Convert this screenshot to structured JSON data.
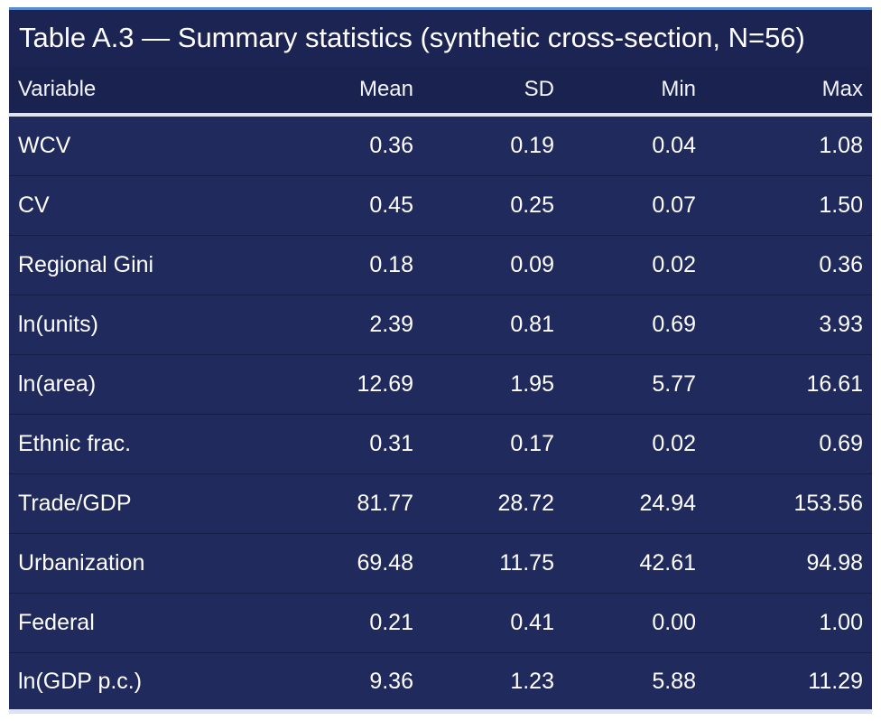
{
  "table": {
    "caption": "Table A.3 — Summary statistics (synthetic cross-section, N=56)",
    "columns": [
      "Variable",
      "Mean",
      "SD",
      "Min",
      "Max"
    ],
    "rows": [
      [
        "WCV",
        "0.36",
        "0.19",
        "0.04",
        "1.08"
      ],
      [
        "CV",
        "0.45",
        "0.25",
        "0.07",
        "1.50"
      ],
      [
        "Regional Gini",
        "0.18",
        "0.09",
        "0.02",
        "0.36"
      ],
      [
        "ln(units)",
        "2.39",
        "0.81",
        "0.69",
        "3.93"
      ],
      [
        "ln(area)",
        "12.69",
        "1.95",
        "5.77",
        "16.61"
      ],
      [
        "Ethnic frac.",
        "0.31",
        "0.17",
        "0.02",
        "0.69"
      ],
      [
        "Trade/GDP",
        "81.77",
        "28.72",
        "24.94",
        "153.56"
      ],
      [
        "Urbanization",
        "69.48",
        "11.75",
        "42.61",
        "94.98"
      ],
      [
        "Federal",
        "0.21",
        "0.41",
        "0.00",
        "1.00"
      ],
      [
        "ln(GDP p.c.)",
        "9.36",
        "1.23",
        "5.88",
        "11.29"
      ]
    ]
  },
  "colors": {
    "background": "#202a5c",
    "caption_bg": "#1c2454",
    "header_bg": "#1a2250",
    "accent_rule": "#5b8bd0",
    "rule": "#dfe3ee",
    "text": "#ffffff"
  }
}
